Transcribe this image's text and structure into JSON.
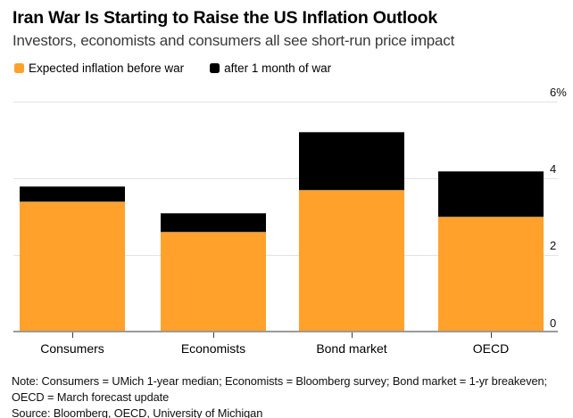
{
  "header": {
    "title": "Iran War Is Starting to Raise the US Inflation Outlook",
    "subtitle": "Investors, economists and consumers all see short-run price impact"
  },
  "legend": {
    "items": [
      {
        "label": "Expected inflation before war",
        "color": "#FFA12B"
      },
      {
        "label": "after 1 month of war",
        "color": "#000000"
      }
    ]
  },
  "chart_data": {
    "type": "bar",
    "stacked": true,
    "title": "Iran War Is Starting to Raise the US Inflation Outlook",
    "subtitle": "Investors, economists and consumers all see short-run price impact",
    "categories": [
      "Consumers",
      "Economists",
      "Bond market",
      "OECD"
    ],
    "series": [
      {
        "name": "Expected inflation before war",
        "color": "#FFA12B",
        "values": [
          3.4,
          2.6,
          3.7,
          3.0
        ]
      },
      {
        "name": "after 1 month of war",
        "color": "#000000",
        "values": [
          0.4,
          0.5,
          1.5,
          1.2
        ],
        "stack_totals_after_war": [
          3.8,
          3.1,
          5.2,
          4.2
        ]
      }
    ],
    "y_axis": {
      "unit": "%",
      "ylim": [
        0,
        6
      ],
      "ticks": [
        0,
        2,
        4,
        6
      ],
      "tick_labels": [
        "0",
        "2",
        "4",
        "6%"
      ],
      "labels_position": "right",
      "grid": true
    },
    "legend_position": "top-left"
  },
  "footer": {
    "note_line1": "Note: Consumers = UMich 1-year median; Economists = Bloomberg survey; Bond market = 1-yr breakeven;",
    "note_line2": "OECD = March forecast update",
    "source": "Source: Bloomberg, OECD, University of Michigan"
  }
}
